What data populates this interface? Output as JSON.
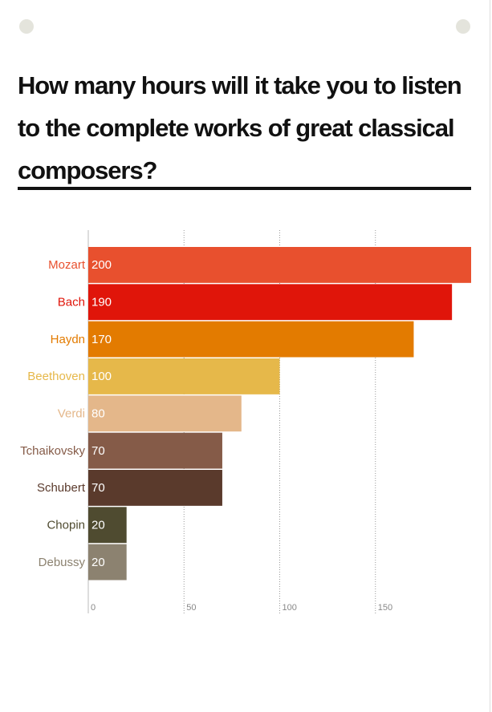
{
  "chart_data": {
    "type": "bar",
    "orientation": "horizontal",
    "title": "How many hours will it take you to listen to the complete works of great classical composers?",
    "categories": [
      "Mozart",
      "Bach",
      "Haydn",
      "Beethoven",
      "Verdi",
      "Tchaikovsky",
      "Schubert",
      "Chopin",
      "Debussy"
    ],
    "values": [
      200,
      190,
      170,
      100,
      80,
      70,
      70,
      20,
      20
    ],
    "colors": [
      "#e8502e",
      "#e0150a",
      "#e37b00",
      "#e6b84a",
      "#e4b78a",
      "#855b48",
      "#5a3a2c",
      "#4f4b30",
      "#8c8270"
    ],
    "xlim": [
      0,
      200
    ],
    "xticks": [
      0,
      50,
      100,
      150
    ],
    "grid": true
  }
}
